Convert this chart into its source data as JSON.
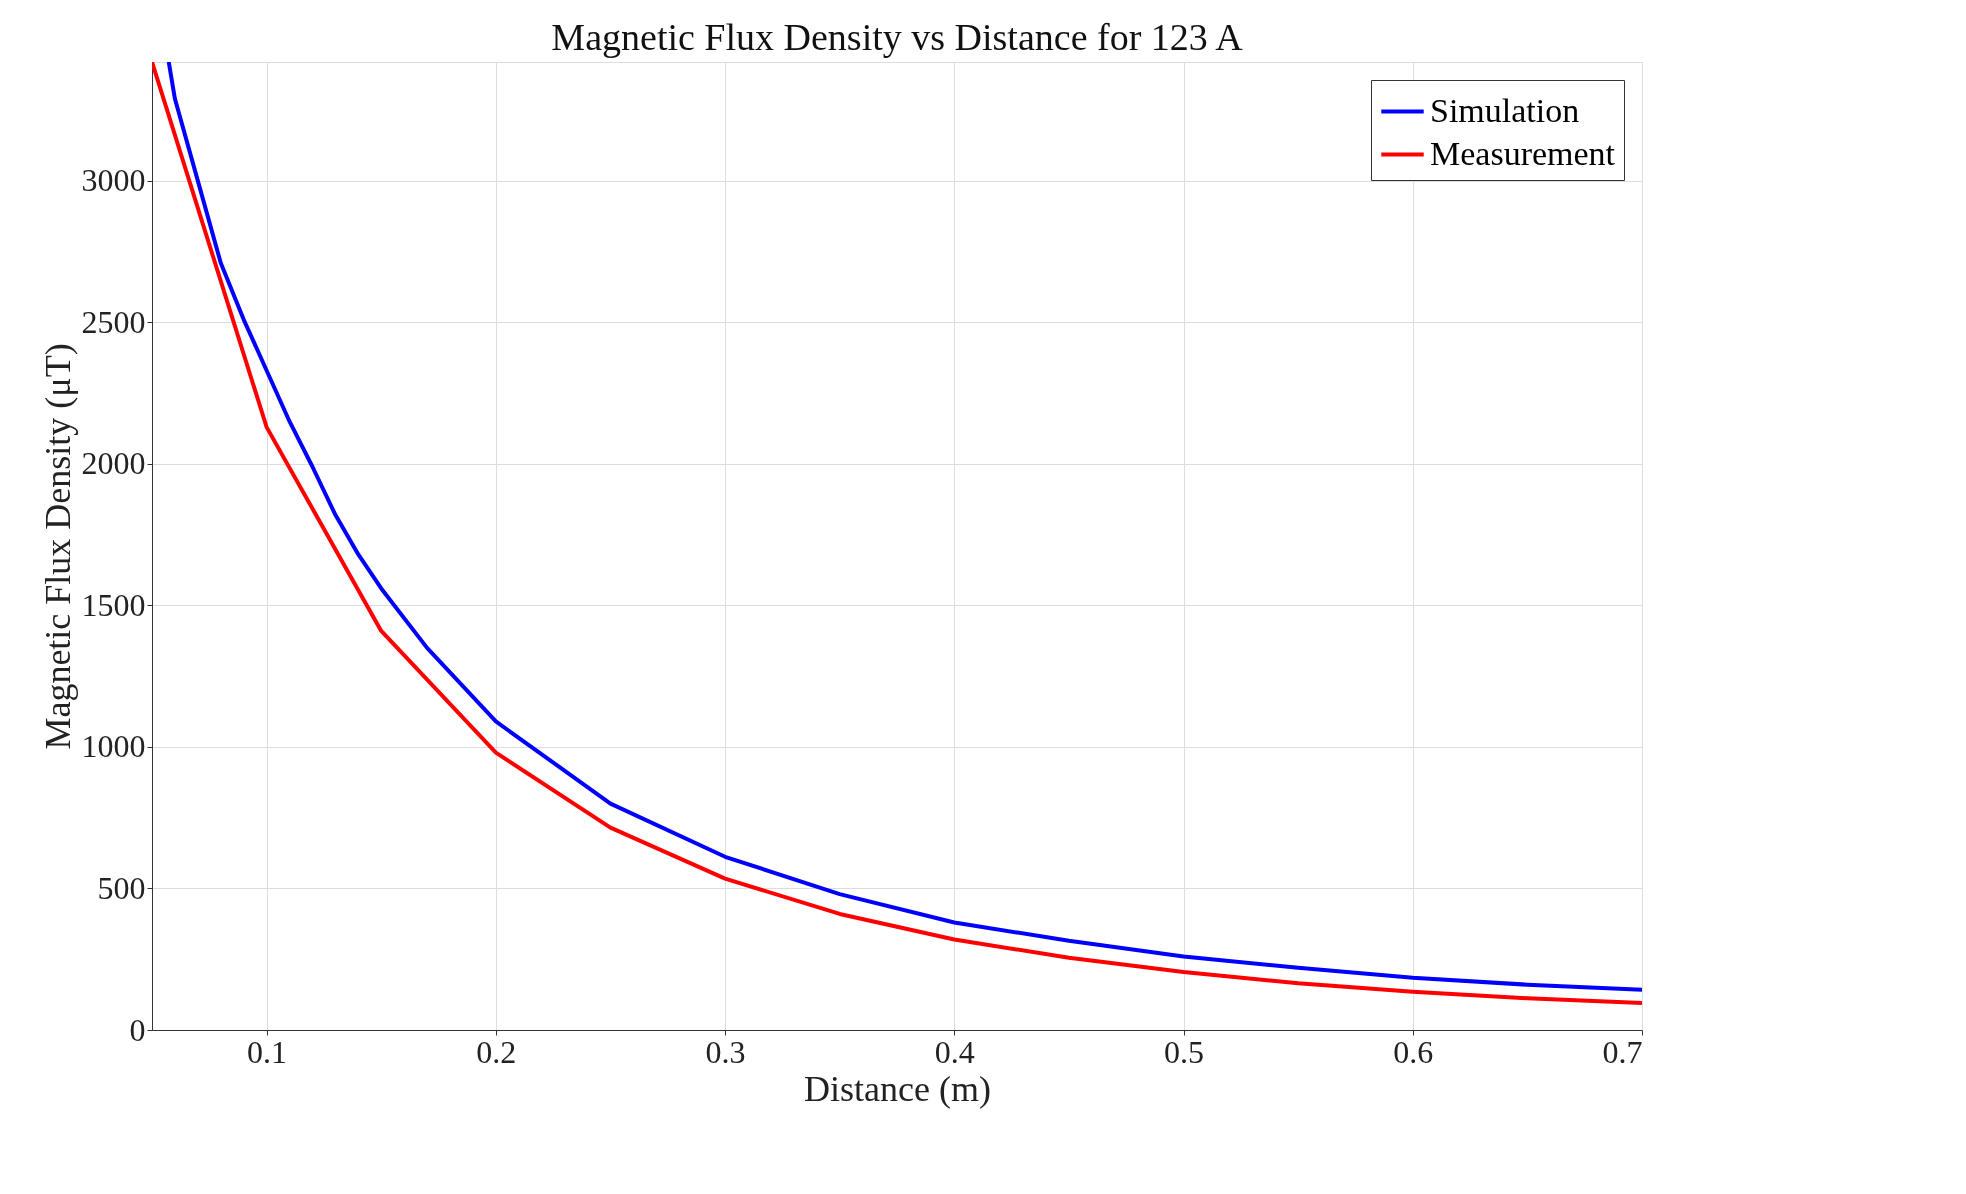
{
  "chart_data": {
    "type": "line",
    "title": "Magnetic Flux Density vs Distance for 123 A",
    "xlabel": "Distance (m)",
    "ylabel": "Magnetic Flux Density (μT)",
    "xlim": [
      0.05,
      0.7
    ],
    "xticks": [
      0.1,
      0.2,
      0.3,
      0.4,
      0.5,
      0.6,
      0.7
    ],
    "ylim": [
      0,
      3420
    ],
    "yticks": [
      0,
      500,
      1000,
      1500,
      2000,
      2500,
      3000
    ],
    "grid": true,
    "legend": "top right",
    "line_style": "solid",
    "marker": "none",
    "series": [
      {
        "name": "Simulation",
        "color": "#0000ff",
        "x": [
          0.0573,
          0.06,
          0.07,
          0.08,
          0.09,
          0.1,
          0.11,
          0.12,
          0.13,
          0.14,
          0.15,
          0.17,
          0.2,
          0.25,
          0.3,
          0.35,
          0.4,
          0.45,
          0.5,
          0.55,
          0.6,
          0.65,
          0.7
        ],
        "values": [
          3420,
          3290,
          3000,
          2710,
          2510,
          2330,
          2150,
          1990,
          1820,
          1680,
          1560,
          1350,
          1090,
          800,
          612,
          480,
          380,
          315,
          260,
          220,
          185,
          160,
          142
        ]
      },
      {
        "name": "Measurement",
        "color": "#ff0000",
        "x": [
          0.05,
          0.1,
          0.15,
          0.2,
          0.25,
          0.3,
          0.35,
          0.4,
          0.45,
          0.5,
          0.55,
          0.6,
          0.65,
          0.7
        ],
        "values": [
          3420,
          2130,
          1410,
          980,
          715,
          535,
          410,
          320,
          255,
          205,
          165,
          135,
          112,
          95
        ]
      }
    ]
  }
}
